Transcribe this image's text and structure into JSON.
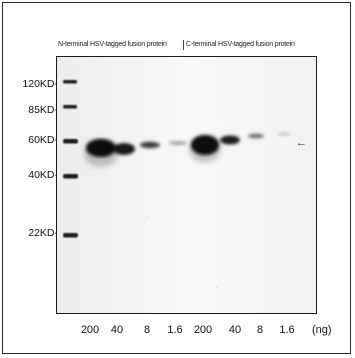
{
  "header": {
    "n_terminal": "N-terminal HSV-tagged fusion protein",
    "c_terminal": "C-terminal HSV-tagged fusion protein"
  },
  "markers": [
    {
      "label": "120KD-"
    },
    {
      "label": "85KD-"
    },
    {
      "label": "60KD-"
    },
    {
      "label": "40KD-"
    },
    {
      "label": "22KD-"
    }
  ],
  "lanes": [
    {
      "label": "200"
    },
    {
      "label": "40"
    },
    {
      "label": "8"
    },
    {
      "label": "1.6"
    },
    {
      "label": "200"
    },
    {
      "label": "40"
    },
    {
      "label": "8"
    },
    {
      "label": "1.6"
    }
  ],
  "unit": "(ng)",
  "arrow_glyph": "←"
}
